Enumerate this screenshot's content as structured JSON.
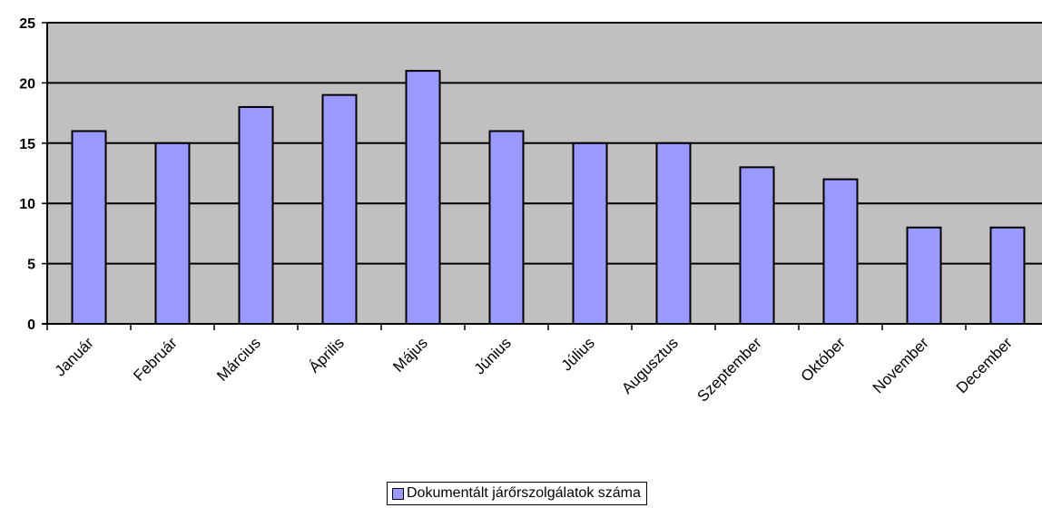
{
  "colors": {
    "bar_fill": "#9999ff",
    "plot_background": "#c0c0c0",
    "gridline": "#000000"
  },
  "chart_data": {
    "type": "bar",
    "categories": [
      "Január",
      "Február",
      "Március",
      "Április",
      "Május",
      "Június",
      "Július",
      "Augusztus",
      "Szeptember",
      "Október",
      "November",
      "December"
    ],
    "series": [
      {
        "name": "Dokumentált járőrszolgálatok száma",
        "values": [
          16,
          15,
          18,
          19,
          21,
          16,
          15,
          15,
          13,
          12,
          8,
          8
        ]
      }
    ],
    "yticks": [
      "0",
      "5",
      "10",
      "15",
      "20",
      "25"
    ],
    "ylim": [
      0,
      25
    ],
    "grid": true,
    "legend_position": "bottom"
  }
}
